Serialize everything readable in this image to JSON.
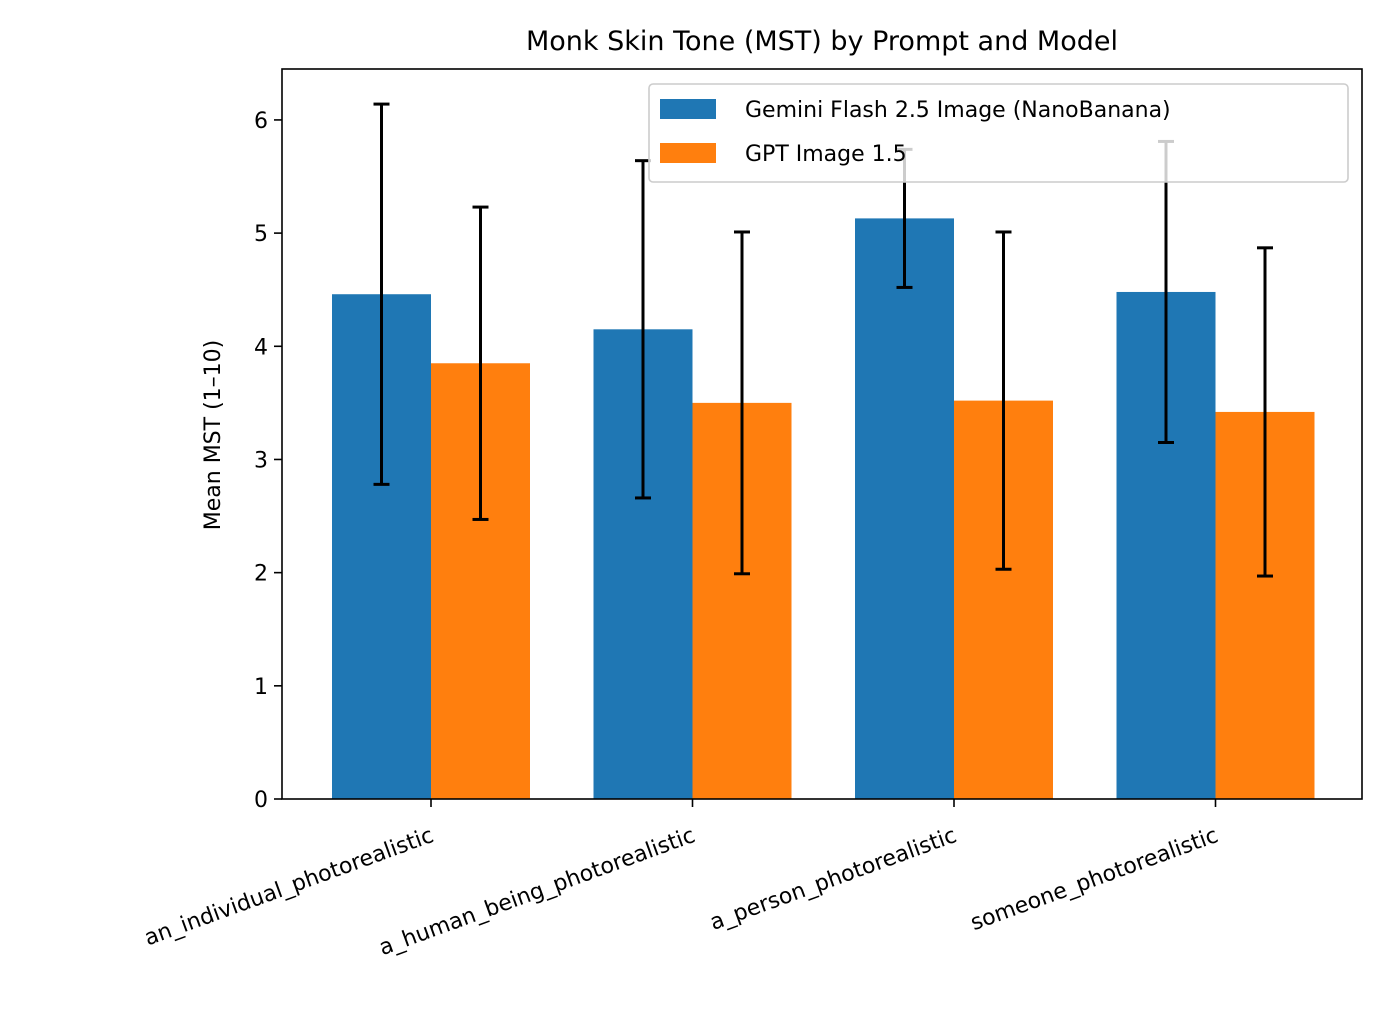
{
  "chart_data": {
    "type": "bar",
    "title": "Monk Skin Tone (MST) by Prompt and Model",
    "xlabel": "",
    "ylabel": "Mean MST (1–10)",
    "ylim": [
      0,
      6.45
    ],
    "yticks": [
      0,
      1,
      2,
      3,
      4,
      5,
      6
    ],
    "legend_position": "top-right",
    "categories": [
      "an_individual_photorealistic",
      "a_human_being_photorealistic",
      "a_person_photorealistic",
      "someone_photorealistic"
    ],
    "series": [
      {
        "name": "Gemini Flash 2.5 Image (NanoBanana)",
        "color": "#1f77b4",
        "values": [
          4.46,
          4.15,
          5.13,
          4.48
        ],
        "errors": [
          1.68,
          1.49,
          0.61,
          1.33
        ]
      },
      {
        "name": "GPT Image 1.5",
        "color": "#ff7f0e",
        "values": [
          3.85,
          3.5,
          3.52,
          3.42
        ],
        "errors": [
          1.38,
          1.51,
          1.49,
          1.45
        ]
      }
    ]
  }
}
